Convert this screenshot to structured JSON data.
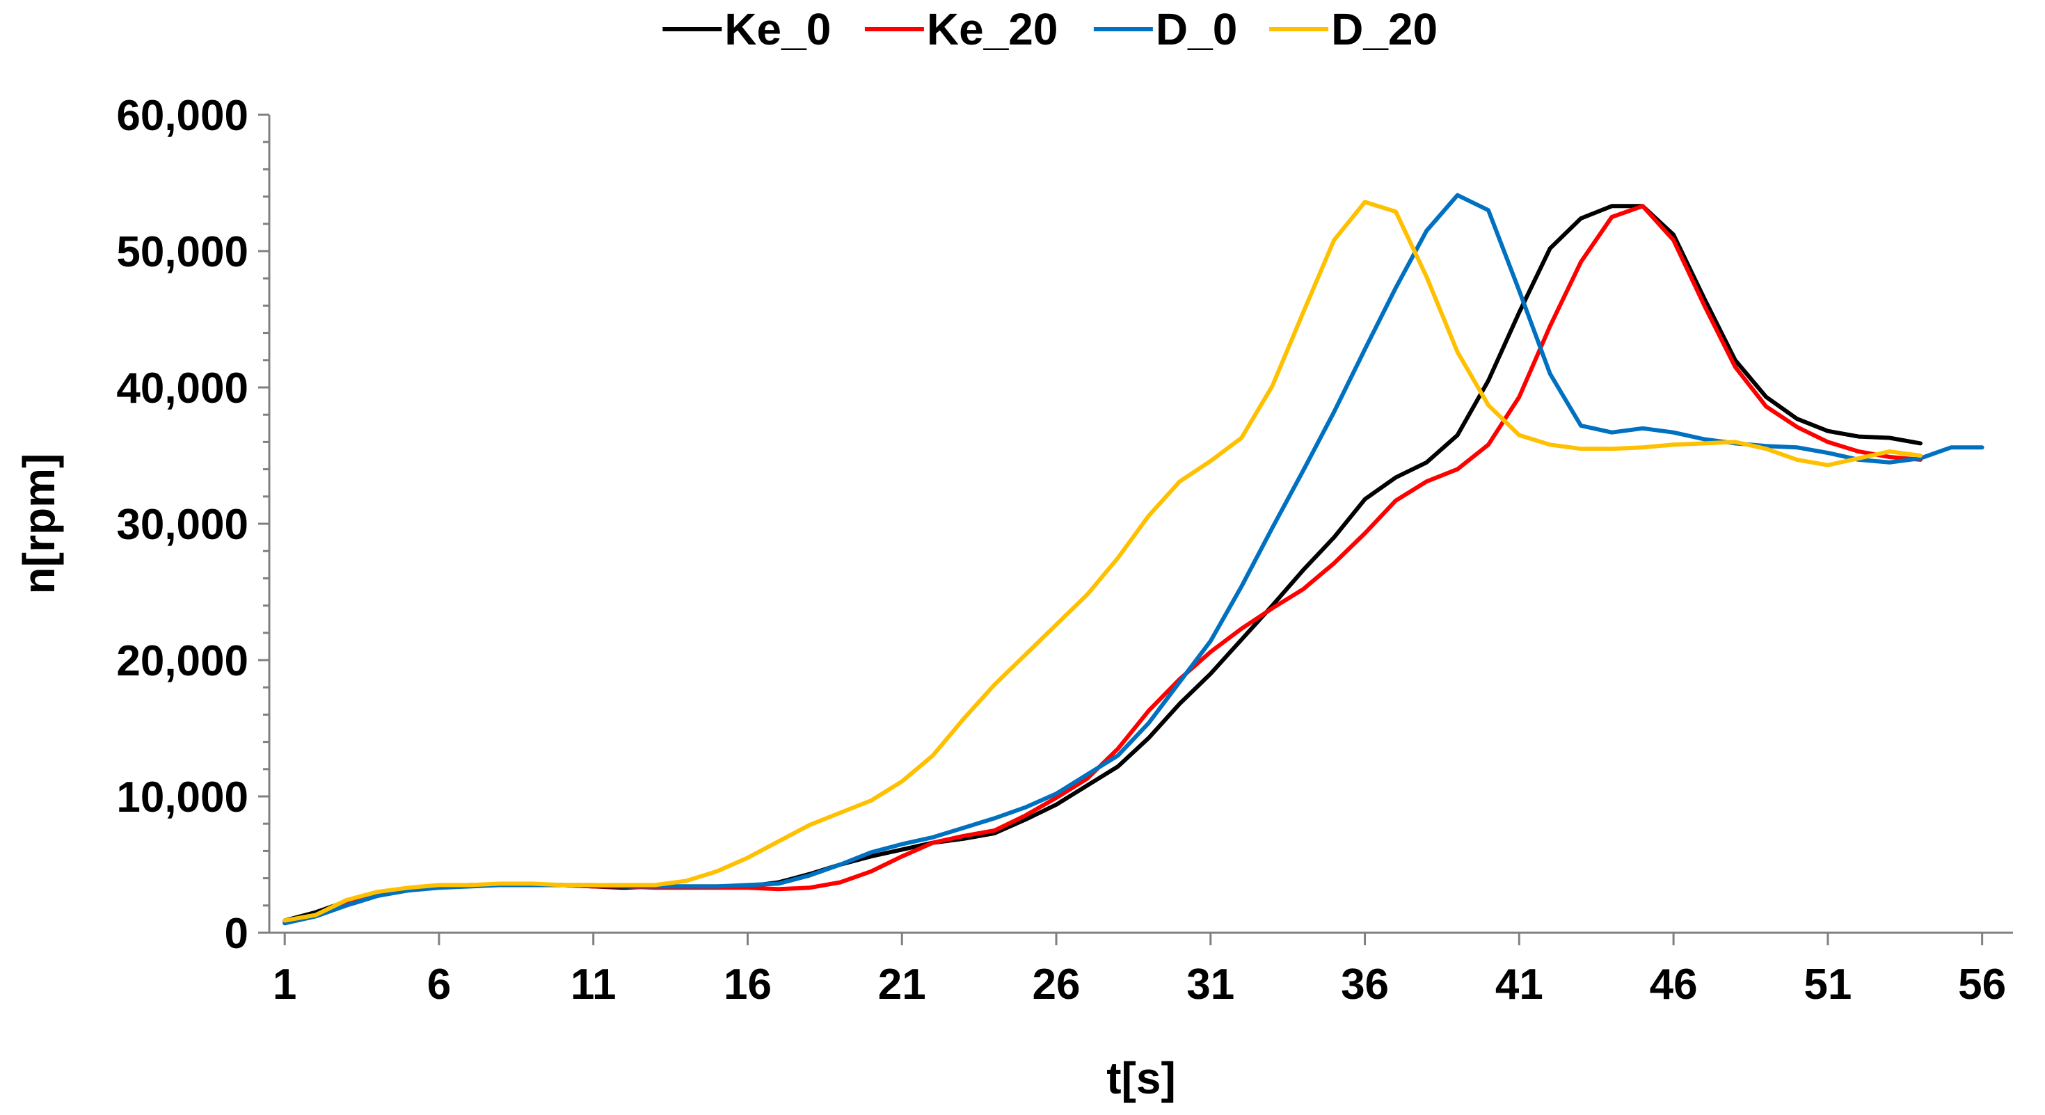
{
  "chart_data": {
    "type": "line",
    "title": "",
    "xlabel": "t[s]",
    "ylabel": "n[rpm]",
    "xlim": [
      0.5,
      57
    ],
    "ylim": [
      0,
      60000
    ],
    "x_ticks": [
      1,
      6,
      11,
      16,
      21,
      26,
      31,
      36,
      41,
      46,
      51,
      56
    ],
    "x_tick_labels": [
      "1",
      "6",
      "11",
      "16",
      "21",
      "26",
      "31",
      "36",
      "41",
      "46",
      "51",
      "56"
    ],
    "y_ticks": [
      0,
      10000,
      20000,
      30000,
      40000,
      50000,
      60000
    ],
    "y_tick_labels": [
      "0",
      "10,000",
      "20,000",
      "30,000",
      "40,000",
      "50,000",
      "60,000"
    ],
    "grid": false,
    "legend_position": "top-center",
    "series": [
      {
        "name": "Ke_0",
        "color": "#000000",
        "x": [
          1,
          2,
          3,
          4,
          5,
          6,
          7,
          8,
          9,
          10,
          11,
          12,
          13,
          14,
          15,
          16,
          17,
          18,
          19,
          20,
          21,
          22,
          23,
          24,
          25,
          26,
          27,
          28,
          29,
          30,
          31,
          32,
          33,
          34,
          35,
          36,
          37,
          38,
          39,
          40,
          41,
          42,
          43,
          44,
          45,
          46,
          47,
          48,
          49,
          50,
          51,
          52,
          53,
          54
        ],
        "y": [
          900,
          1500,
          2300,
          2900,
          3200,
          3400,
          3500,
          3500,
          3500,
          3500,
          3400,
          3300,
          3400,
          3400,
          3400,
          3400,
          3700,
          4300,
          5000,
          5600,
          6100,
          6600,
          6900,
          7300,
          8300,
          9400,
          10800,
          12200,
          14300,
          16800,
          19000,
          21500,
          24000,
          26600,
          29000,
          31800,
          33400,
          34500,
          36500,
          40500,
          45500,
          50200,
          52400,
          53300,
          53300,
          51200,
          46500,
          42000,
          39300,
          37700,
          36800,
          36400,
          36300,
          35900
        ]
      },
      {
        "name": "Ke_20",
        "color": "#ff0000",
        "x": [
          1,
          2,
          3,
          4,
          5,
          6,
          7,
          8,
          9,
          10,
          11,
          12,
          13,
          14,
          15,
          16,
          17,
          18,
          19,
          20,
          21,
          22,
          23,
          24,
          25,
          26,
          27,
          28,
          29,
          30,
          31,
          32,
          33,
          34,
          35,
          36,
          37,
          38,
          39,
          40,
          41,
          42,
          43,
          44,
          45,
          46,
          47,
          48,
          49,
          50,
          51,
          52,
          53,
          54
        ],
        "y": [
          800,
          1300,
          2200,
          2800,
          3200,
          3400,
          3500,
          3500,
          3500,
          3500,
          3400,
          3400,
          3300,
          3300,
          3300,
          3300,
          3200,
          3300,
          3700,
          4500,
          5600,
          6600,
          7100,
          7500,
          8600,
          9900,
          11300,
          13500,
          16300,
          18600,
          20600,
          22300,
          23800,
          25200,
          27100,
          29300,
          31700,
          33100,
          34000,
          35800,
          39300,
          44500,
          49200,
          52500,
          53300,
          50800,
          46000,
          41500,
          38600,
          37100,
          36000,
          35300,
          34900,
          34700
        ]
      },
      {
        "name": "D_0",
        "color": "#0070c0",
        "x": [
          1,
          2,
          3,
          4,
          5,
          6,
          7,
          8,
          9,
          10,
          11,
          12,
          13,
          14,
          15,
          16,
          17,
          18,
          19,
          20,
          21,
          22,
          23,
          24,
          25,
          26,
          27,
          28,
          29,
          30,
          31,
          32,
          33,
          34,
          35,
          36,
          37,
          38,
          39,
          40,
          41,
          42,
          43,
          44,
          45,
          46,
          47,
          48,
          49,
          50,
          51,
          52,
          53,
          54,
          55,
          56
        ],
        "y": [
          700,
          1200,
          2000,
          2700,
          3100,
          3300,
          3400,
          3500,
          3500,
          3500,
          3500,
          3400,
          3400,
          3400,
          3400,
          3500,
          3600,
          4200,
          5000,
          5900,
          6500,
          7000,
          7700,
          8400,
          9200,
          10200,
          11600,
          13000,
          15400,
          18400,
          21400,
          25400,
          29700,
          33900,
          38200,
          42800,
          47300,
          51500,
          54100,
          53000,
          47100,
          41000,
          37200,
          36700,
          37000,
          36700,
          36200,
          35900,
          35700,
          35600,
          35200,
          34700,
          34500,
          34800,
          35600,
          35600
        ]
      },
      {
        "name": "D_20",
        "color": "#ffc000",
        "x": [
          1,
          2,
          3,
          4,
          5,
          6,
          7,
          8,
          9,
          10,
          11,
          12,
          13,
          14,
          15,
          16,
          17,
          18,
          19,
          20,
          21,
          22,
          23,
          24,
          25,
          26,
          27,
          28,
          29,
          30,
          31,
          32,
          33,
          34,
          35,
          36,
          37,
          38,
          39,
          40,
          41,
          42,
          43,
          44,
          45,
          46,
          47,
          48,
          49,
          50,
          51,
          52,
          53,
          54
        ],
        "y": [
          900,
          1300,
          2400,
          3000,
          3300,
          3500,
          3500,
          3600,
          3600,
          3500,
          3500,
          3500,
          3500,
          3800,
          4500,
          5500,
          6700,
          7900,
          8800,
          9700,
          11100,
          13000,
          15700,
          18200,
          20400,
          22600,
          24800,
          27500,
          30600,
          33100,
          34600,
          36300,
          40100,
          45500,
          50800,
          53600,
          52900,
          48100,
          42600,
          38700,
          36500,
          35800,
          35500,
          35500,
          35600,
          35800,
          35900,
          36000,
          35500,
          34700,
          34300,
          34800,
          35300,
          35000
        ]
      }
    ]
  }
}
